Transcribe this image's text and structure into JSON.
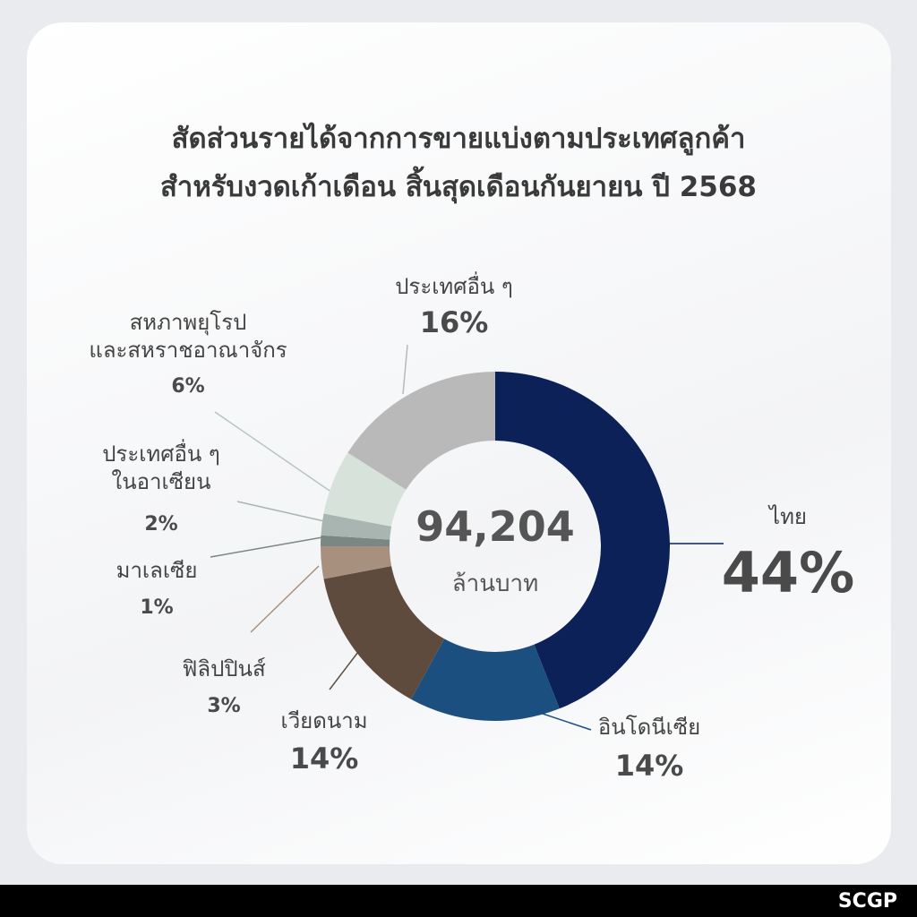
{
  "chart_data": {
    "type": "donut",
    "title": "สัดส่วนรายได้จากการขายแบ่งตามประเทศลูกค้า\nสำหรับงวดเก้าเดือน สิ้นสุดเดือนกันยายน ปี 2568",
    "center_text": "94,204",
    "center_subtext": "ล้านบาท",
    "categories": [
      "ไทย",
      "อินโดนีเซีย",
      "เวียดนาม",
      "ฟิลิปปินส์",
      "มาเลเซีย",
      "ประเทศอื่น ๆ\nในอาเซียน",
      "สหภาพยุโรป\nและสหราชอาณาจักร",
      "ประเทศอื่น ๆ"
    ],
    "values": [
      44,
      14,
      14,
      3,
      1,
      2,
      6,
      16
    ],
    "value_labels": [
      "44%",
      "14%",
      "14%",
      "3%",
      "1%",
      "2%",
      "6%",
      "16%"
    ],
    "colors": [
      "#0c2158",
      "#1b4f80",
      "#5e4b3d",
      "#a8907f",
      "#7b8782",
      "#a9b5b0",
      "#d6e2da",
      "#b9b9b9"
    ]
  },
  "brand": "SCGP"
}
